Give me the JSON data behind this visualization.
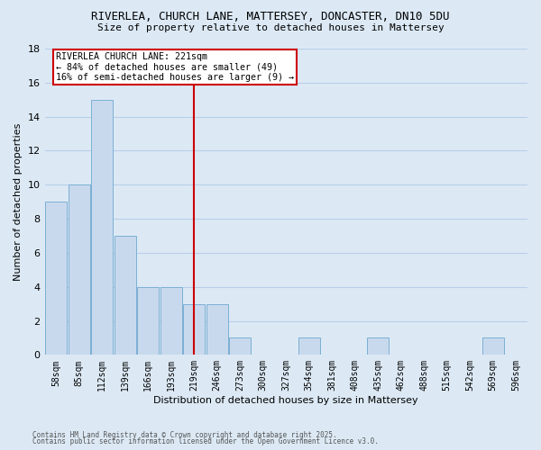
{
  "title1": "RIVERLEA, CHURCH LANE, MATTERSEY, DONCASTER, DN10 5DU",
  "title2": "Size of property relative to detached houses in Mattersey",
  "xlabel": "Distribution of detached houses by size in Mattersey",
  "ylabel": "Number of detached properties",
  "bar_labels": [
    "58sqm",
    "85sqm",
    "112sqm",
    "139sqm",
    "166sqm",
    "193sqm",
    "219sqm",
    "246sqm",
    "273sqm",
    "300sqm",
    "327sqm",
    "354sqm",
    "381sqm",
    "408sqm",
    "435sqm",
    "462sqm",
    "488sqm",
    "515sqm",
    "542sqm",
    "569sqm",
    "596sqm"
  ],
  "bar_values": [
    9,
    10,
    15,
    7,
    4,
    4,
    3,
    3,
    1,
    0,
    0,
    1,
    0,
    0,
    1,
    0,
    0,
    0,
    0,
    1,
    0
  ],
  "bar_color": "#c9d9ed",
  "bar_edge_color": "#7bafd4",
  "background_color": "#dce9f5",
  "grid_color": "#b8cfe8",
  "vline_x_idx": 6,
  "vline_color": "#cc0000",
  "annotation_title": "RIVERLEA CHURCH LANE: 221sqm",
  "annotation_line1": "← 84% of detached houses are smaller (49)",
  "annotation_line2": "16% of semi-detached houses are larger (9) →",
  "annotation_box_color": "#cc0000",
  "annotation_bg": "#ffffff",
  "ylim": [
    0,
    18
  ],
  "yticks": [
    0,
    2,
    4,
    6,
    8,
    10,
    12,
    14,
    16,
    18
  ],
  "footnote1": "Contains HM Land Registry data © Crown copyright and database right 2025.",
  "footnote2": "Contains public sector information licensed under the Open Government Licence v3.0."
}
